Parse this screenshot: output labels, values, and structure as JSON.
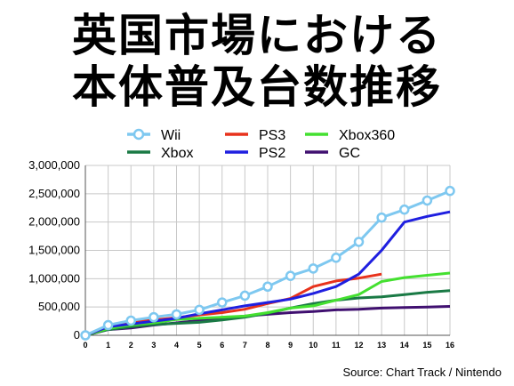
{
  "title_line1": "英国市場における",
  "title_line2": "本体普及台数推移",
  "source": "Source: Chart Track / Nintendo",
  "chart_data": {
    "type": "line",
    "x": [
      0,
      1,
      2,
      3,
      4,
      5,
      6,
      7,
      8,
      9,
      10,
      11,
      12,
      13,
      14,
      15,
      16
    ],
    "ylim": [
      0,
      3000000
    ],
    "yticks": [
      0,
      500000,
      1000000,
      1500000,
      2000000,
      2500000,
      3000000
    ],
    "ytick_labels": [
      "0",
      "500,000",
      "1,000,000",
      "1,500,000",
      "2,000,000",
      "2,500,000",
      "3,000,000"
    ],
    "xtick_labels": [
      "0",
      "1",
      "2",
      "3",
      "4",
      "5",
      "6",
      "7",
      "8",
      "9",
      "10",
      "11",
      "12",
      "13",
      "14",
      "15",
      "16"
    ],
    "grid": true,
    "series": [
      {
        "name": "Wii",
        "color": "#7ec8f0",
        "marker": true,
        "values": [
          0,
          180000,
          260000,
          320000,
          370000,
          450000,
          580000,
          700000,
          860000,
          1050000,
          1180000,
          1370000,
          1650000,
          2080000,
          2220000,
          2380000,
          2550000
        ]
      },
      {
        "name": "PS3",
        "color": "#e8321c",
        "values": [
          0,
          150000,
          230000,
          270000,
          310000,
          360000,
          400000,
          460000,
          560000,
          650000,
          860000,
          960000,
          1010000,
          1080000,
          null,
          null,
          null
        ]
      },
      {
        "name": "Xbox360",
        "color": "#44e030",
        "values": [
          0,
          120000,
          180000,
          220000,
          280000,
          300000,
          320000,
          340000,
          400000,
          480000,
          520000,
          620000,
          720000,
          950000,
          1020000,
          1060000,
          1100000
        ]
      },
      {
        "name": "Xbox",
        "color": "#1a7a45",
        "values": [
          0,
          100000,
          150000,
          190000,
          210000,
          230000,
          270000,
          320000,
          390000,
          480000,
          560000,
          620000,
          660000,
          680000,
          720000,
          760000,
          790000
        ]
      },
      {
        "name": "PS2",
        "color": "#1f1fe0",
        "values": [
          0,
          150000,
          200000,
          250000,
          300000,
          380000,
          450000,
          520000,
          580000,
          640000,
          740000,
          860000,
          1080000,
          1500000,
          2000000,
          2100000,
          2180000
        ]
      },
      {
        "name": "GC",
        "color": "#401070",
        "values": [
          0,
          100000,
          130000,
          180000,
          220000,
          260000,
          300000,
          340000,
          370000,
          400000,
          420000,
          450000,
          460000,
          480000,
          490000,
          500000,
          510000
        ]
      }
    ],
    "legend": [
      {
        "name": "Wii",
        "color": "#7ec8f0",
        "marker": true
      },
      {
        "name": "PS3",
        "color": "#e8321c"
      },
      {
        "name": "Xbox360",
        "color": "#44e030"
      },
      {
        "name": "Xbox",
        "color": "#1a7a45"
      },
      {
        "name": "PS2",
        "color": "#1f1fe0"
      },
      {
        "name": "GC",
        "color": "#401070"
      }
    ],
    "legend_position": "top"
  }
}
